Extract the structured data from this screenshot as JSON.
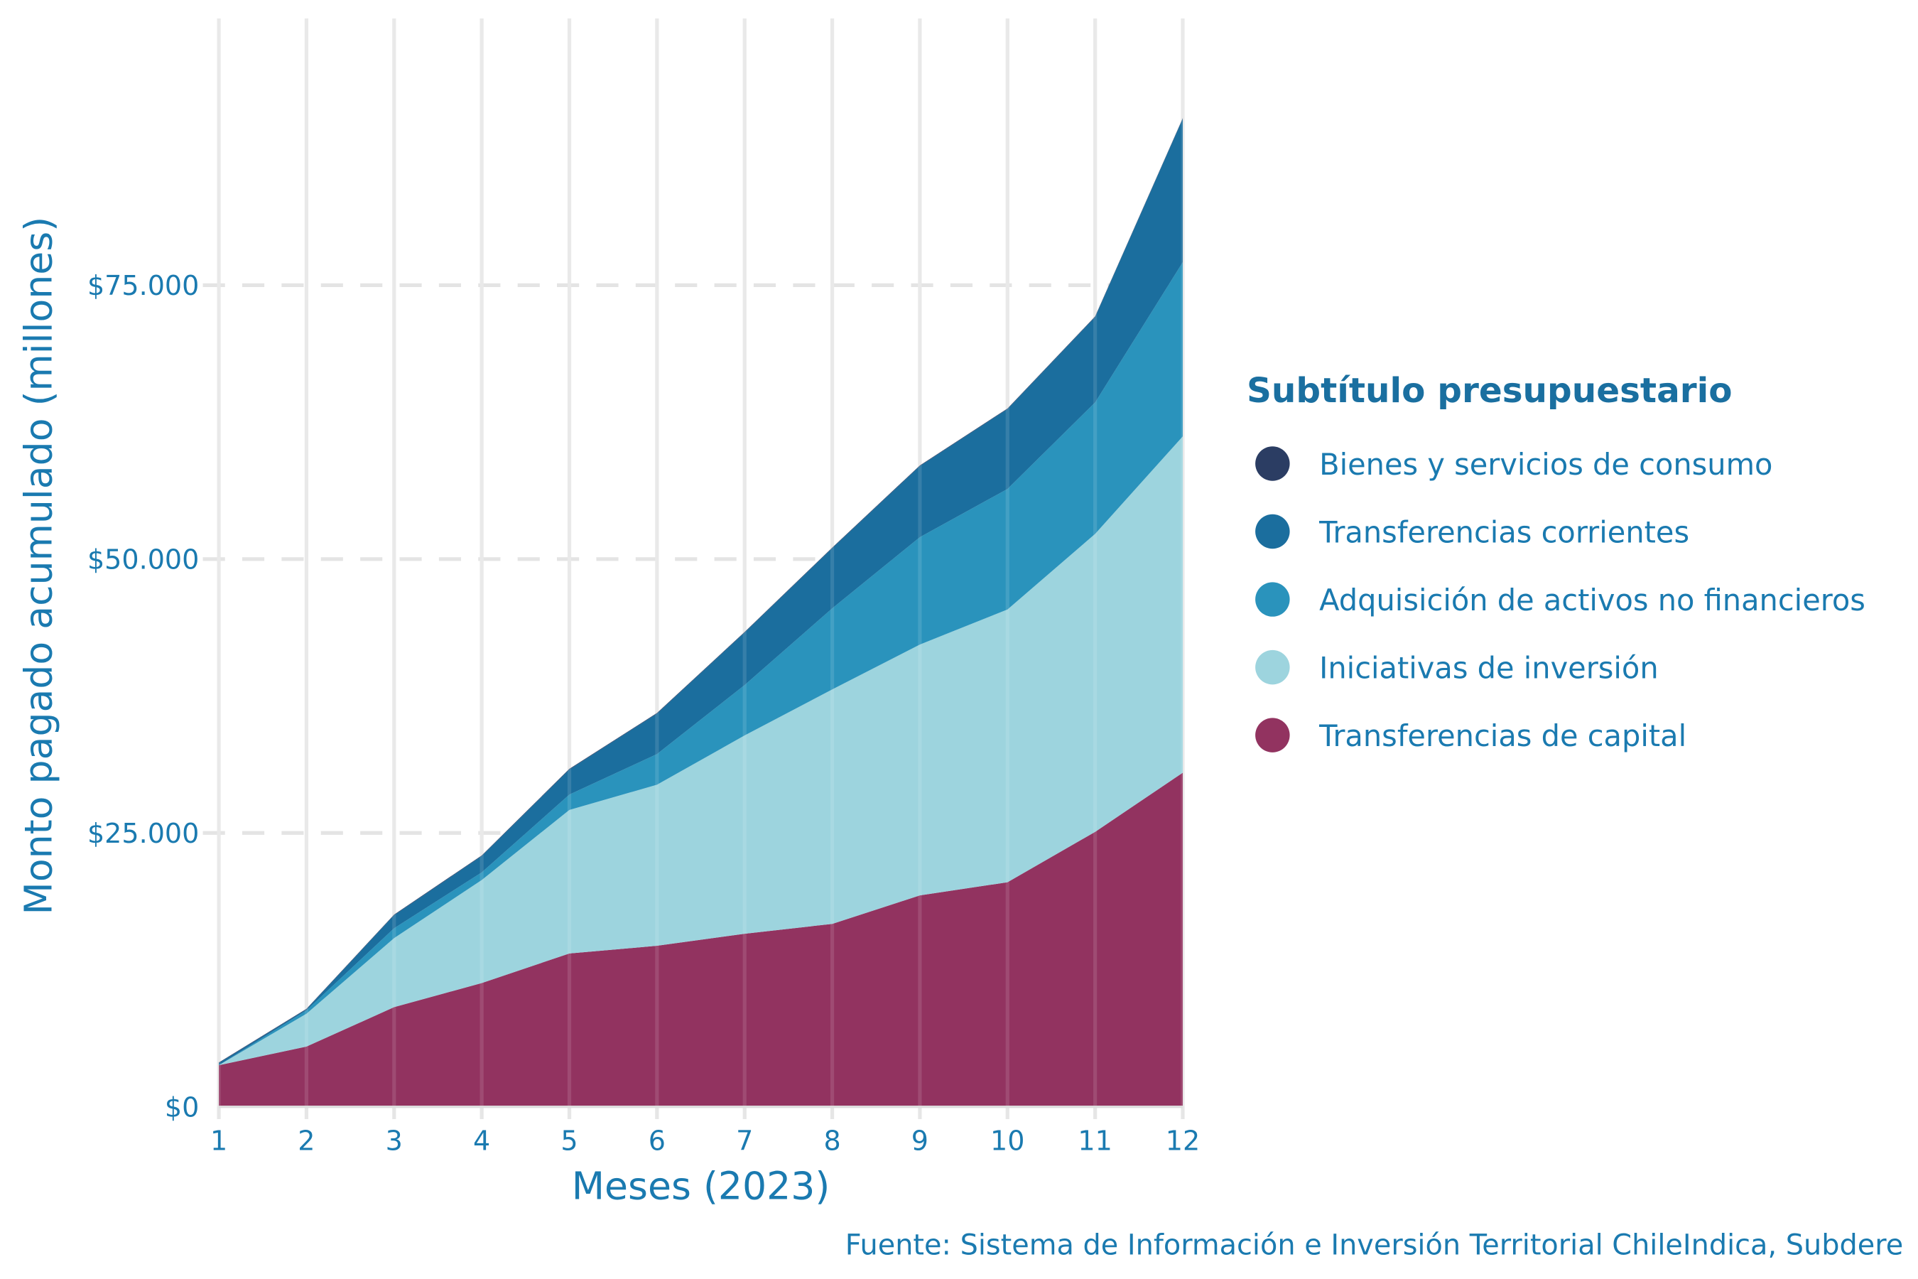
{
  "chart_data": {
    "type": "area",
    "stacked": true,
    "title": "",
    "xlabel": "Meses (2023)",
    "ylabel": "Monto pagado acumulado (millones)",
    "x": [
      1,
      2,
      3,
      4,
      5,
      6,
      7,
      8,
      9,
      10,
      11,
      12
    ],
    "x_tick_labels": [
      "1",
      "2",
      "3",
      "4",
      "5",
      "6",
      "7",
      "8",
      "9",
      "10",
      "11",
      "12"
    ],
    "y_ticks": [
      0,
      25000,
      50000,
      75000
    ],
    "y_tick_labels": [
      "$0",
      "$25.000",
      "$50.000",
      "$75.000"
    ],
    "ylim": [
      0,
      99000
    ],
    "xlim": [
      1,
      12
    ],
    "grid": true,
    "legend": {
      "title": "Subtítulo presupuestario",
      "placement": "right"
    },
    "series": [
      {
        "name": "Bienes y servicios de consumo",
        "color": "#2b3d63",
        "values": [
          50,
          50,
          50,
          50,
          50,
          50,
          50,
          50,
          50,
          50,
          50,
          50
        ]
      },
      {
        "name": "Transferencias corrientes",
        "color": "#1b6e9e",
        "values": [
          200,
          100,
          1200,
          1500,
          2300,
          3700,
          4800,
          5500,
          6500,
          7300,
          7800,
          13100
        ]
      },
      {
        "name": "Adquisición de activos no financieros",
        "color": "#2a93bc",
        "values": [
          0,
          300,
          900,
          700,
          1400,
          2800,
          4600,
          7400,
          9800,
          11000,
          12000,
          15900
        ]
      },
      {
        "name": "Iniciativas de inversión",
        "color": "#9dd4de",
        "values": [
          0,
          3000,
          6300,
          9400,
          13100,
          14700,
          18100,
          21400,
          22900,
          24900,
          27200,
          30700
        ]
      },
      {
        "name": "Transferencias de capital",
        "color": "#923360",
        "values": [
          3800,
          5500,
          9100,
          11300,
          14000,
          14700,
          15800,
          16700,
          19300,
          20500,
          25100,
          30500
        ]
      }
    ],
    "source": "Fuente: Sistema de Información e Inversión Territorial ChileIndica, Subdere"
  }
}
